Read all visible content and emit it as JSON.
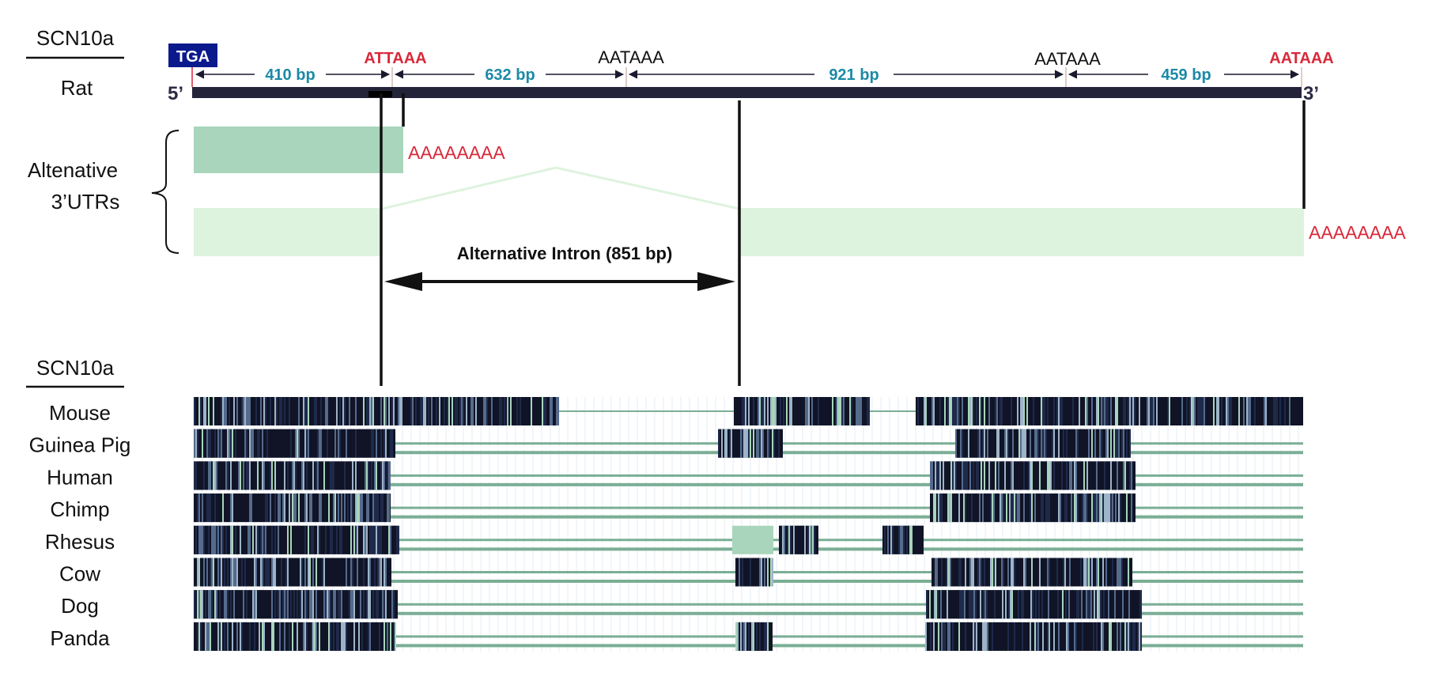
{
  "top": {
    "gene_label": "SCN10a",
    "species_label": "Rat",
    "stop_codon": "TGA",
    "five_prime": "5’",
    "three_prime": "3’",
    "signals": [
      {
        "text": "ATTAAA",
        "emphasis": true
      },
      {
        "text": "AATAAA",
        "emphasis": false
      },
      {
        "text": "AATAAA",
        "emphasis": false
      },
      {
        "text": "AATAAA",
        "emphasis": true
      }
    ],
    "segments": [
      "410 bp",
      "632 bp",
      "921 bp",
      "459 bp"
    ]
  },
  "utr": {
    "group_label_line1": "Altenative",
    "group_label_line2": "3’UTRs",
    "polya_short": "AAAAAAAA",
    "polya_long": "AAAAAAAA",
    "intron_label": "Alternative Intron (851 bp)"
  },
  "alignment": {
    "gene_label": "SCN10a",
    "species": [
      "Mouse",
      "Guinea Pig",
      "Human",
      "Chimp",
      "Rhesus",
      "Cow",
      "Dog",
      "Panda"
    ]
  },
  "colors": {
    "gene_bar": "#23233a",
    "stop_box": "#0a1a8c",
    "emphasis_signal": "#d8293a",
    "length_label": "#1b8aa6",
    "utr_short": "#a8d5bb",
    "utr_long": "#def3de",
    "polya": "#d8293a",
    "conservation_dark": "#101426",
    "conservation_light": "#a8d5bb",
    "gap_line": "#7aae95"
  }
}
